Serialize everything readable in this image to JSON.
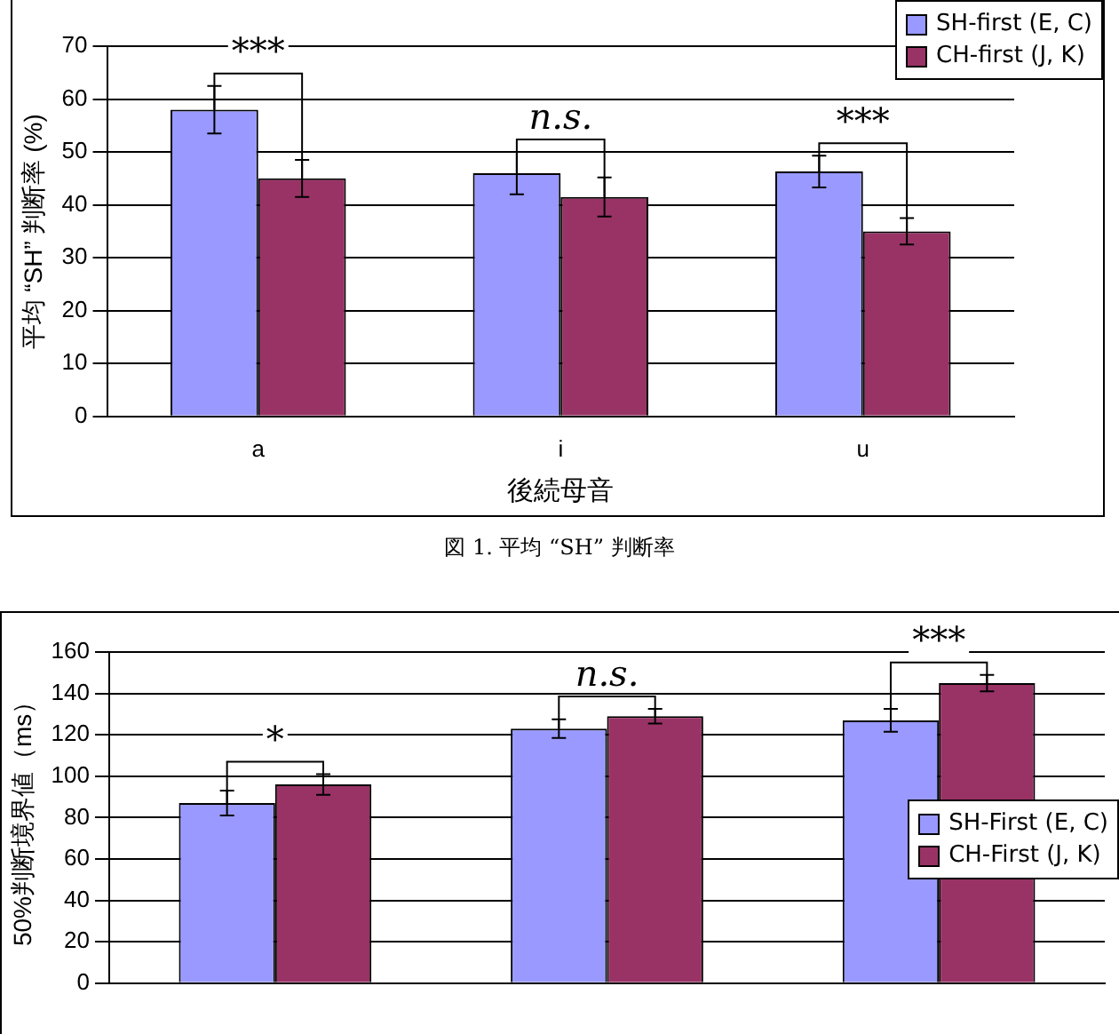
{
  "chart_data": [
    {
      "type": "bar",
      "xlabel": "後続母音",
      "ylabel": "平均 “SH” 判断率 (%)",
      "categories": [
        "a",
        "i",
        "u"
      ],
      "series": [
        {
          "name": "SH-first (E, C)",
          "color": "#9999ff",
          "values": [
            58,
            46,
            46.3
          ],
          "errors": [
            4.5,
            4,
            3
          ]
        },
        {
          "name": "CH-first (J, K)",
          "color": "#993366",
          "values": [
            45,
            41.5,
            35
          ],
          "errors": [
            3.5,
            3.7,
            2.5
          ]
        }
      ],
      "ylim": [
        0,
        70
      ],
      "yticks": [
        0,
        10,
        20,
        30,
        40,
        50,
        60,
        70
      ],
      "grid": "y",
      "legend": "top right",
      "annotations": [
        {
          "text": "***",
          "x": "a",
          "y": 58
        },
        {
          "text": "n.s.",
          "x": "i",
          "y": 46
        },
        {
          "text": "***",
          "x": "u",
          "y": 46.3
        },
        "図 1. 平均 “SH” 判断率"
      ]
    },
    {
      "type": "bar",
      "ylabel": "50%判断境界値（ms）",
      "categories": [
        null,
        null,
        null
      ],
      "series": [
        {
          "name": "SH-First (E, C)",
          "color": "#9999ff",
          "values": [
            87,
            123,
            127
          ],
          "errors": [
            6,
            4.5,
            5.5
          ]
        },
        {
          "name": "CH-First (J, K)",
          "color": "#993366",
          "values": [
            96,
            129,
            145
          ],
          "errors": [
            5,
            3.5,
            4
          ]
        }
      ],
      "ylim": [
        0,
        160
      ],
      "yticks": [
        0,
        20,
        40,
        60,
        80,
        100,
        120,
        140,
        160
      ],
      "grid": "y",
      "legend": "right",
      "annotations": [
        {
          "text": "*",
          "y": 96
        },
        {
          "text": "n.s.",
          "y": 129
        },
        {
          "text": "***",
          "y": 145
        }
      ]
    }
  ]
}
